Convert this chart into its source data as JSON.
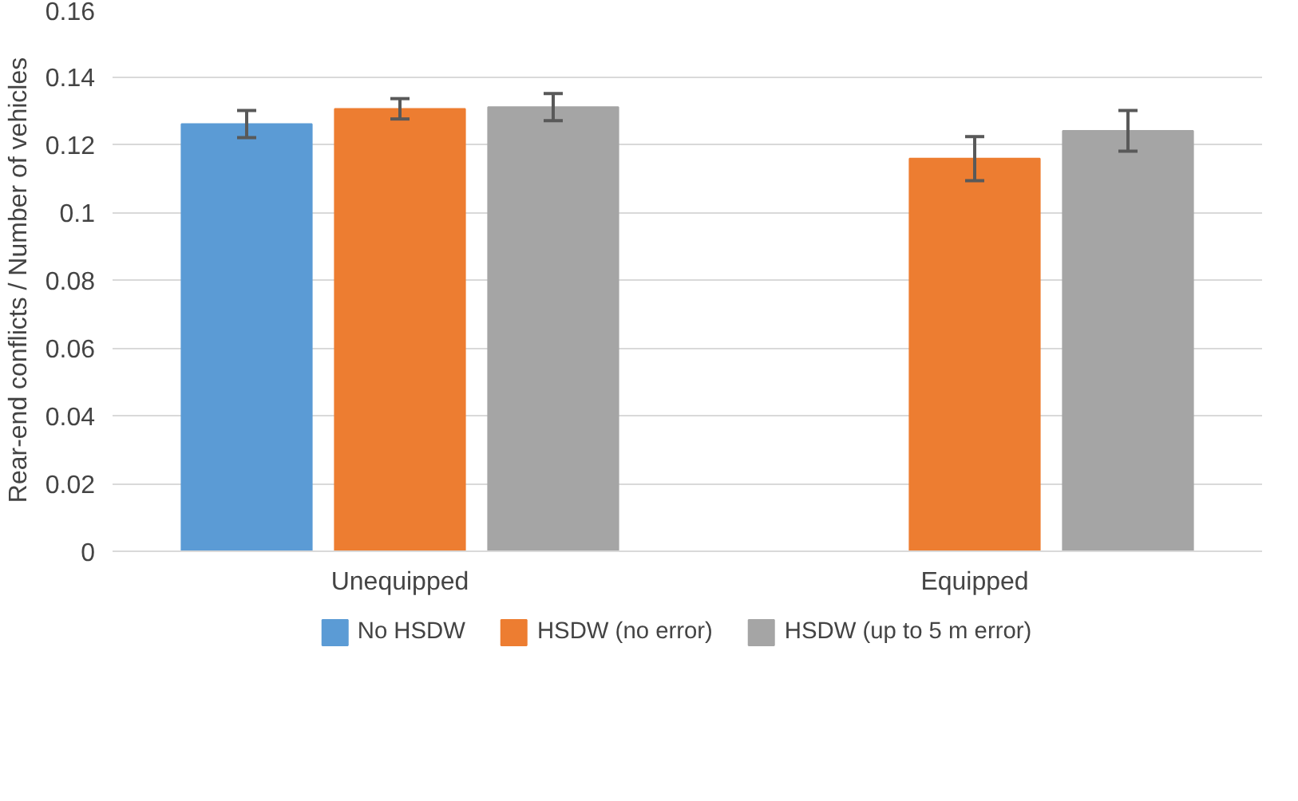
{
  "chart_data": {
    "type": "bar",
    "ylabel": "Rear-end conflicts / Number of vehicles",
    "categories": [
      "Unequipped",
      "Equipped"
    ],
    "series": [
      {
        "name": "No HSDW",
        "color": "#5b9bd5",
        "values": [
          0.126,
          null
        ],
        "errors": [
          0.004,
          null
        ]
      },
      {
        "name": "HSDW (no error)",
        "color": "#ed7d31",
        "values": [
          0.1305,
          0.1158
        ],
        "errors": [
          0.003,
          0.0065
        ]
      },
      {
        "name": "HSDW (up to 5 m error)",
        "color": "#a5a5a5",
        "values": [
          0.131,
          0.124
        ],
        "errors": [
          0.004,
          0.006
        ]
      }
    ],
    "ylim": [
      0,
      0.16
    ],
    "yticks": [
      0,
      {
        "value": 0.02,
        "label": "0.02"
      },
      {
        "value": 0.04,
        "label": "0.04"
      },
      {
        "value": 0.06,
        "label": "0.06"
      },
      {
        "value": 0.08,
        "label": "0.08"
      },
      {
        "value": 0.1,
        "label": "0.1"
      },
      {
        "value": 0.12,
        "label": "0.12"
      },
      {
        "value": 0.14,
        "label": "0.14"
      },
      {
        "value": 0.16,
        "label": "0.16"
      }
    ],
    "grid": "y",
    "legend": "bottom"
  }
}
